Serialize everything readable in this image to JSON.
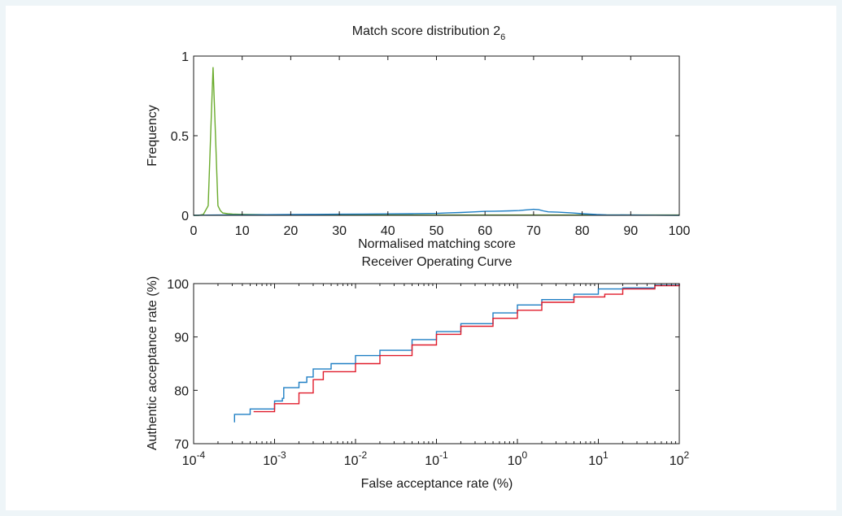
{
  "colors": {
    "green": "#6aab2c",
    "blue": "#1f7fc4",
    "red": "#e01b2a",
    "axis": "#1a1a1a",
    "frame": "#eef5f8"
  },
  "chart_data": [
    {
      "type": "line",
      "title": "Match score distribution 2",
      "title_subscript": "6",
      "xlabel": "Normalised matching score",
      "ylabel": "Frequency",
      "xlim": [
        0,
        100
      ],
      "ylim": [
        0,
        1
      ],
      "xticks": [
        "0",
        "10",
        "20",
        "30",
        "40",
        "50",
        "60",
        "70",
        "80",
        "90",
        "100"
      ],
      "yticks": [
        "0",
        "0.5",
        "1"
      ],
      "grid": false,
      "series": [
        {
          "color": "#6aab2c",
          "x": [
            0,
            1,
            2,
            3,
            3.5,
            4,
            4.5,
            5,
            5.5,
            6,
            7,
            8,
            10,
            15,
            20,
            30,
            40,
            50,
            60,
            70,
            75,
            80,
            85,
            90,
            95,
            100
          ],
          "y": [
            0,
            0,
            0.005,
            0.06,
            0.5,
            0.93,
            0.5,
            0.06,
            0.03,
            0.015,
            0.01,
            0.008,
            0.006,
            0.004,
            0.003,
            0.002,
            0.002,
            0.002,
            0.002,
            0.002,
            0.002,
            0.002,
            0.002,
            0.002,
            0.002,
            0.002
          ]
        },
        {
          "color": "#1f7fc4",
          "x": [
            0,
            2,
            5,
            10,
            15,
            20,
            25,
            30,
            35,
            40,
            45,
            50,
            52,
            55,
            58,
            60,
            62,
            65,
            67,
            69,
            70,
            71,
            72,
            73,
            75,
            78,
            80,
            83,
            85,
            90,
            95,
            100
          ],
          "y": [
            0,
            0.001,
            0.002,
            0.003,
            0.004,
            0.005,
            0.006,
            0.007,
            0.008,
            0.009,
            0.01,
            0.012,
            0.015,
            0.018,
            0.022,
            0.025,
            0.026,
            0.028,
            0.03,
            0.035,
            0.038,
            0.036,
            0.028,
            0.022,
            0.02,
            0.015,
            0.01,
            0.005,
            0.003,
            0.002,
            0.001,
            0
          ]
        }
      ]
    },
    {
      "type": "line",
      "title": "Receiver Operating Curve",
      "xlabel": "False acceptance rate (%)",
      "ylabel": "Authentic acceptance rate (%)",
      "xscale": "log",
      "xlim": [
        0.0001,
        100
      ],
      "ylim": [
        70,
        100
      ],
      "xtick_base": "10",
      "xtick_exponents": [
        "-4",
        "-3",
        "-2",
        "-1",
        "0",
        "1",
        "2"
      ],
      "yticks": [
        "70",
        "80",
        "90",
        "100"
      ],
      "grid": false,
      "series": [
        {
          "color": "#1f7fc4",
          "x": [
            0.00032,
            0.00032,
            0.0005,
            0.001,
            0.00125,
            0.0013,
            0.002,
            0.0025,
            0.003,
            0.005,
            0.01,
            0.02,
            0.05,
            0.1,
            0.2,
            0.5,
            1,
            2,
            5,
            10,
            20,
            50,
            100
          ],
          "y": [
            74,
            75.5,
            76.5,
            78,
            78.5,
            80.5,
            81.5,
            82.5,
            84,
            85,
            86.5,
            87.5,
            89.5,
            91,
            92.5,
            94.5,
            96,
            97,
            98,
            99,
            99.2,
            99.7,
            100
          ]
        },
        {
          "color": "#e01b2a",
          "x": [
            0.00055,
            0.001,
            0.002,
            0.003,
            0.004,
            0.01,
            0.02,
            0.05,
            0.1,
            0.2,
            0.5,
            1,
            2,
            5,
            12,
            20,
            50,
            100
          ],
          "y": [
            76,
            77.5,
            79.5,
            82,
            83.5,
            85,
            86.5,
            88.5,
            90.5,
            92,
            93.5,
            95,
            96.5,
            97.5,
            98,
            99,
            99.6,
            100
          ]
        }
      ]
    }
  ]
}
